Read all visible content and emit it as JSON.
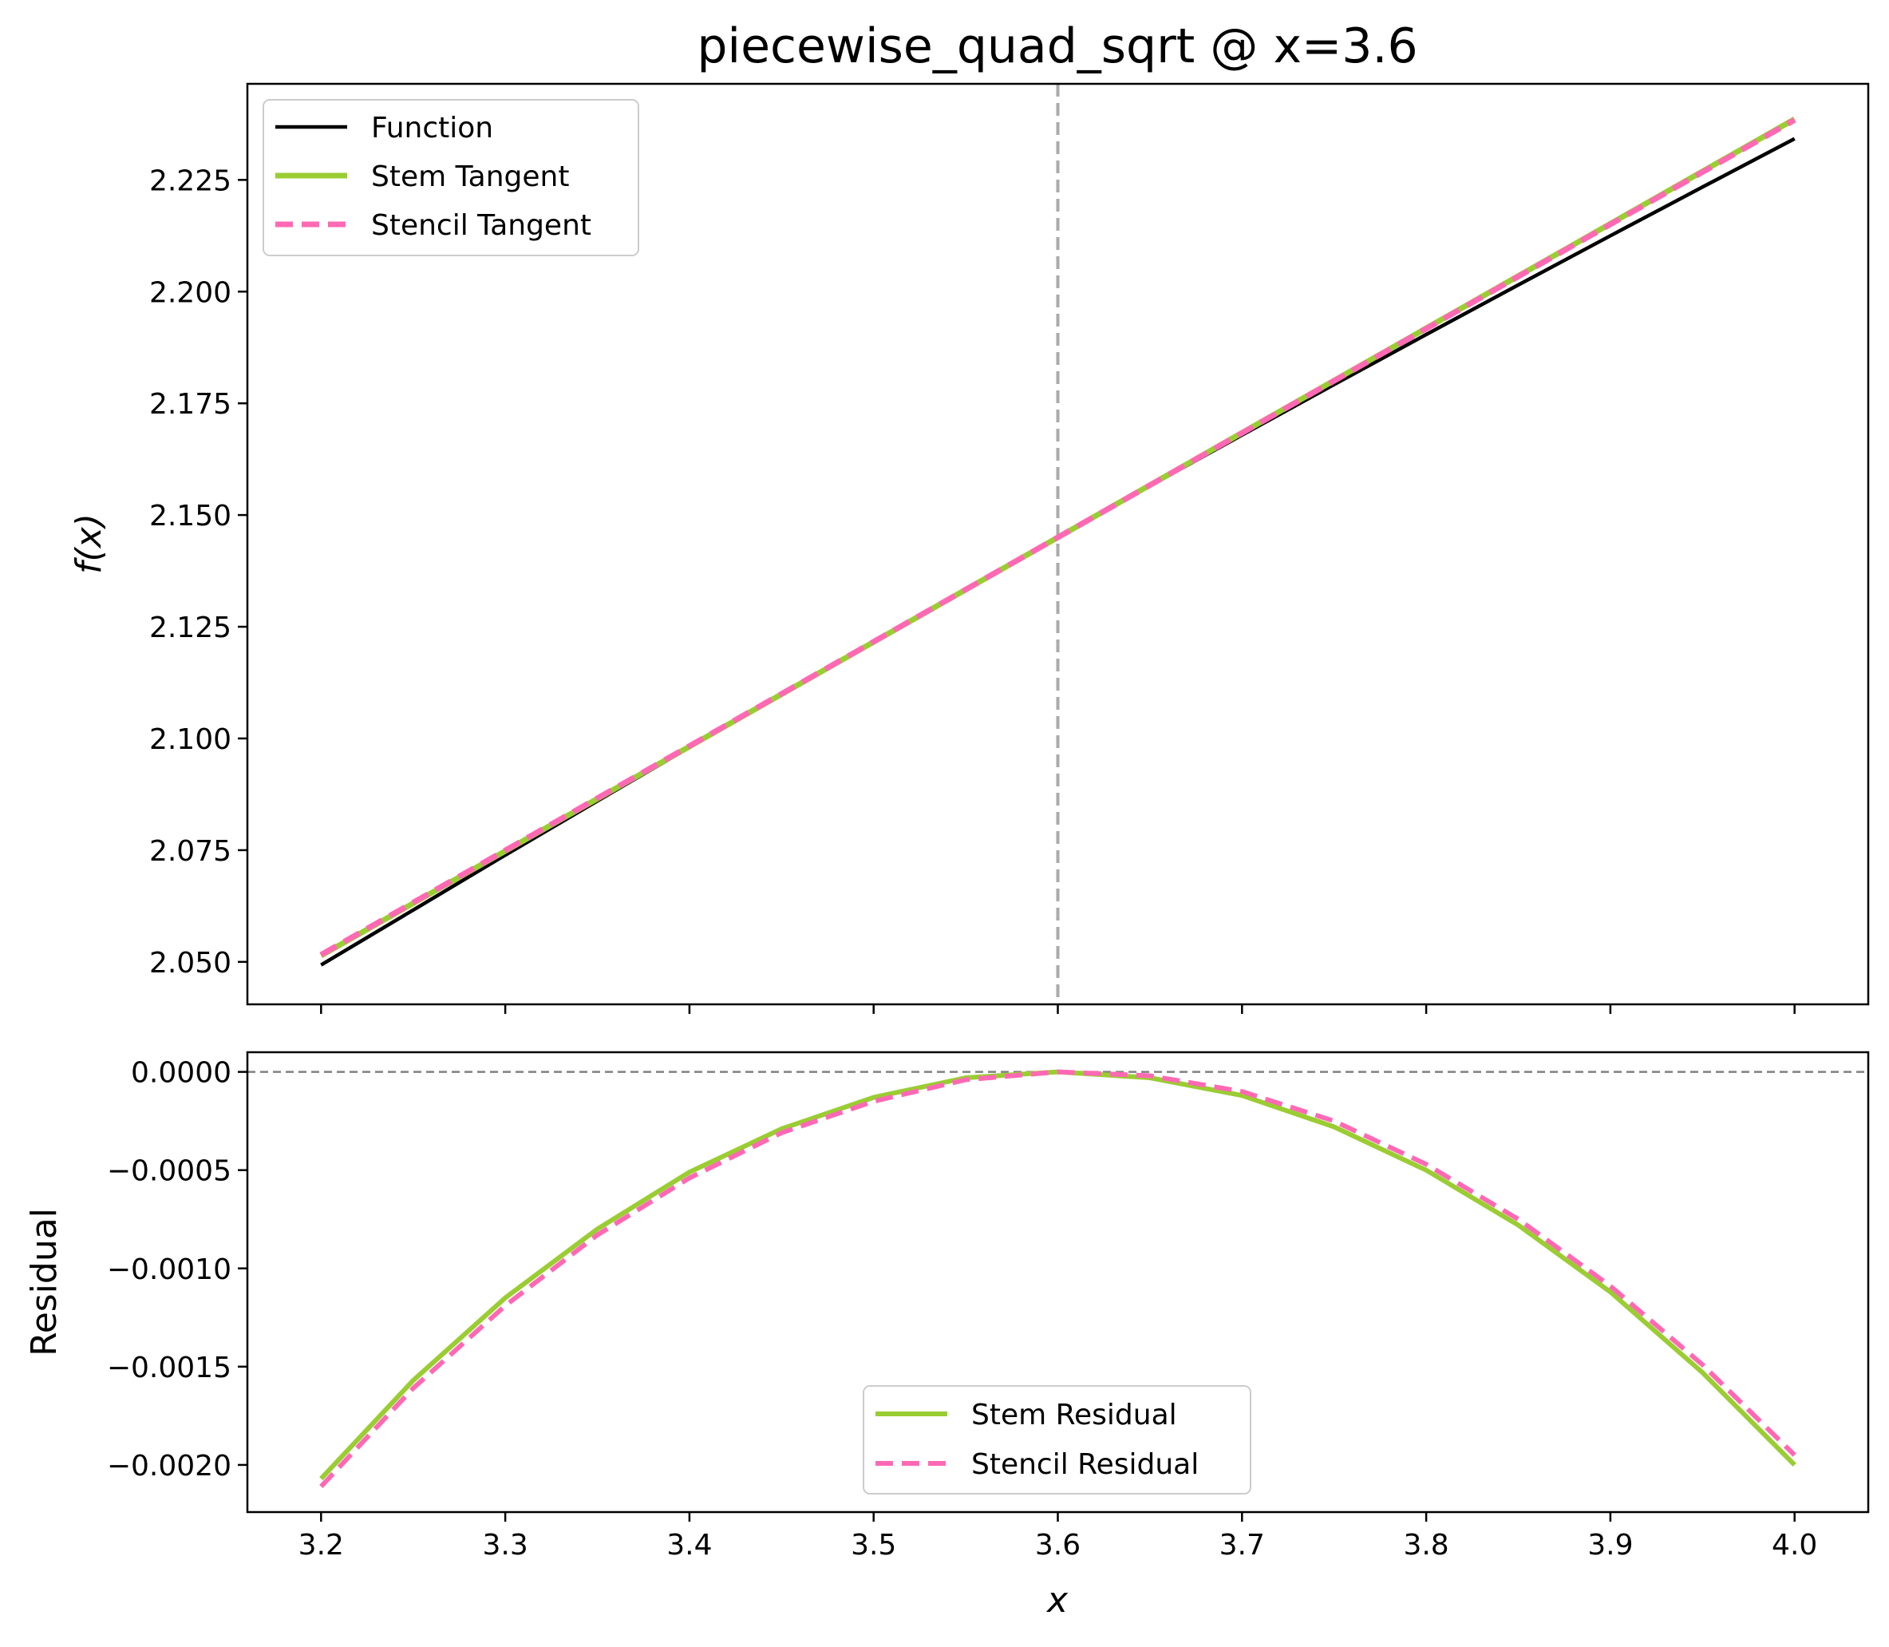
{
  "chart_data": [
    {
      "type": "line",
      "title": "piecewise_quad_sqrt @ x=3.6",
      "xlabel": "",
      "ylabel": "f(x)",
      "xlim": [
        3.16,
        4.04
      ],
      "ylim": [
        2.0405,
        2.2465
      ],
      "x_ticks": [
        3.2,
        3.3,
        3.4,
        3.5,
        3.6,
        3.7,
        3.8,
        3.9,
        4.0
      ],
      "y_ticks": [
        2.05,
        2.075,
        2.1,
        2.125,
        2.15,
        2.175,
        2.2,
        2.225
      ],
      "y_tick_labels": [
        "2.050",
        "2.075",
        "2.100",
        "2.125",
        "2.150",
        "2.175",
        "2.200",
        "2.225"
      ],
      "vline_x": 3.6,
      "legend_position": "upper-left",
      "grid": false,
      "series": [
        {
          "name": "Function",
          "color": "#000000",
          "style": "solid",
          "x": [
            3.2,
            3.25,
            3.3,
            3.35,
            3.4,
            3.45,
            3.5,
            3.55,
            3.6,
            3.65,
            3.7,
            3.75,
            3.8,
            3.85,
            3.9,
            3.95,
            4.0
          ],
          "y": [
            2.0493,
            2.0616,
            2.0739,
            2.086,
            2.098,
            2.1099,
            2.1217,
            2.1334,
            2.145,
            2.1565,
            2.1679,
            2.1792,
            2.1904,
            2.2015,
            2.2125,
            2.2234,
            2.2342
          ]
        },
        {
          "name": "Stem Tangent",
          "color": "#9acd32",
          "style": "solid",
          "x": [
            3.2,
            4.0
          ],
          "y": [
            2.0514,
            2.2386
          ]
        },
        {
          "name": "Stencil Tangent",
          "color": "#ff69b4",
          "style": "dashed",
          "x": [
            3.2,
            4.0
          ],
          "y": [
            2.0516,
            2.2384
          ]
        }
      ]
    },
    {
      "type": "line",
      "title": "",
      "xlabel": "x",
      "ylabel": "Residual",
      "xlim": [
        3.16,
        4.04
      ],
      "ylim": [
        -0.00224,
        0.0001
      ],
      "x_ticks": [
        3.2,
        3.3,
        3.4,
        3.5,
        3.6,
        3.7,
        3.8,
        3.9,
        4.0
      ],
      "x_tick_labels": [
        "3.2",
        "3.3",
        "3.4",
        "3.5",
        "3.6",
        "3.7",
        "3.8",
        "3.9",
        "4.0"
      ],
      "y_ticks": [
        0.0,
        -0.0005,
        -0.001,
        -0.0015,
        -0.002
      ],
      "y_tick_labels": [
        "0.0000",
        "−0.0005",
        "−0.0010",
        "−0.0015",
        "−0.0020"
      ],
      "hline_y": 0.0,
      "legend_position": "lower-center",
      "grid": false,
      "series": [
        {
          "name": "Stem Residual",
          "color": "#9acd32",
          "style": "solid",
          "x": [
            3.2,
            3.25,
            3.3,
            3.35,
            3.4,
            3.45,
            3.5,
            3.55,
            3.6,
            3.65,
            3.7,
            3.75,
            3.8,
            3.85,
            3.9,
            3.95,
            4.0
          ],
          "y": [
            -0.00207,
            -0.00157,
            -0.00115,
            -0.0008,
            -0.00051,
            -0.00029,
            -0.00013,
            -3e-05,
            0.0,
            -3e-05,
            -0.00012,
            -0.00028,
            -0.0005,
            -0.00078,
            -0.00112,
            -0.00153,
            -0.002
          ]
        },
        {
          "name": "Stencil Residual",
          "color": "#ff69b4",
          "style": "dashed",
          "x": [
            3.2,
            3.25,
            3.3,
            3.35,
            3.4,
            3.45,
            3.5,
            3.55,
            3.6,
            3.65,
            3.7,
            3.75,
            3.8,
            3.85,
            3.9,
            3.95,
            4.0
          ],
          "y": [
            -0.00211,
            -0.00161,
            -0.00119,
            -0.00083,
            -0.00054,
            -0.00031,
            -0.00015,
            -4e-05,
            0.0,
            -2e-05,
            -0.0001,
            -0.00025,
            -0.00047,
            -0.00075,
            -0.00109,
            -0.00149,
            -0.00195
          ]
        }
      ]
    }
  ]
}
